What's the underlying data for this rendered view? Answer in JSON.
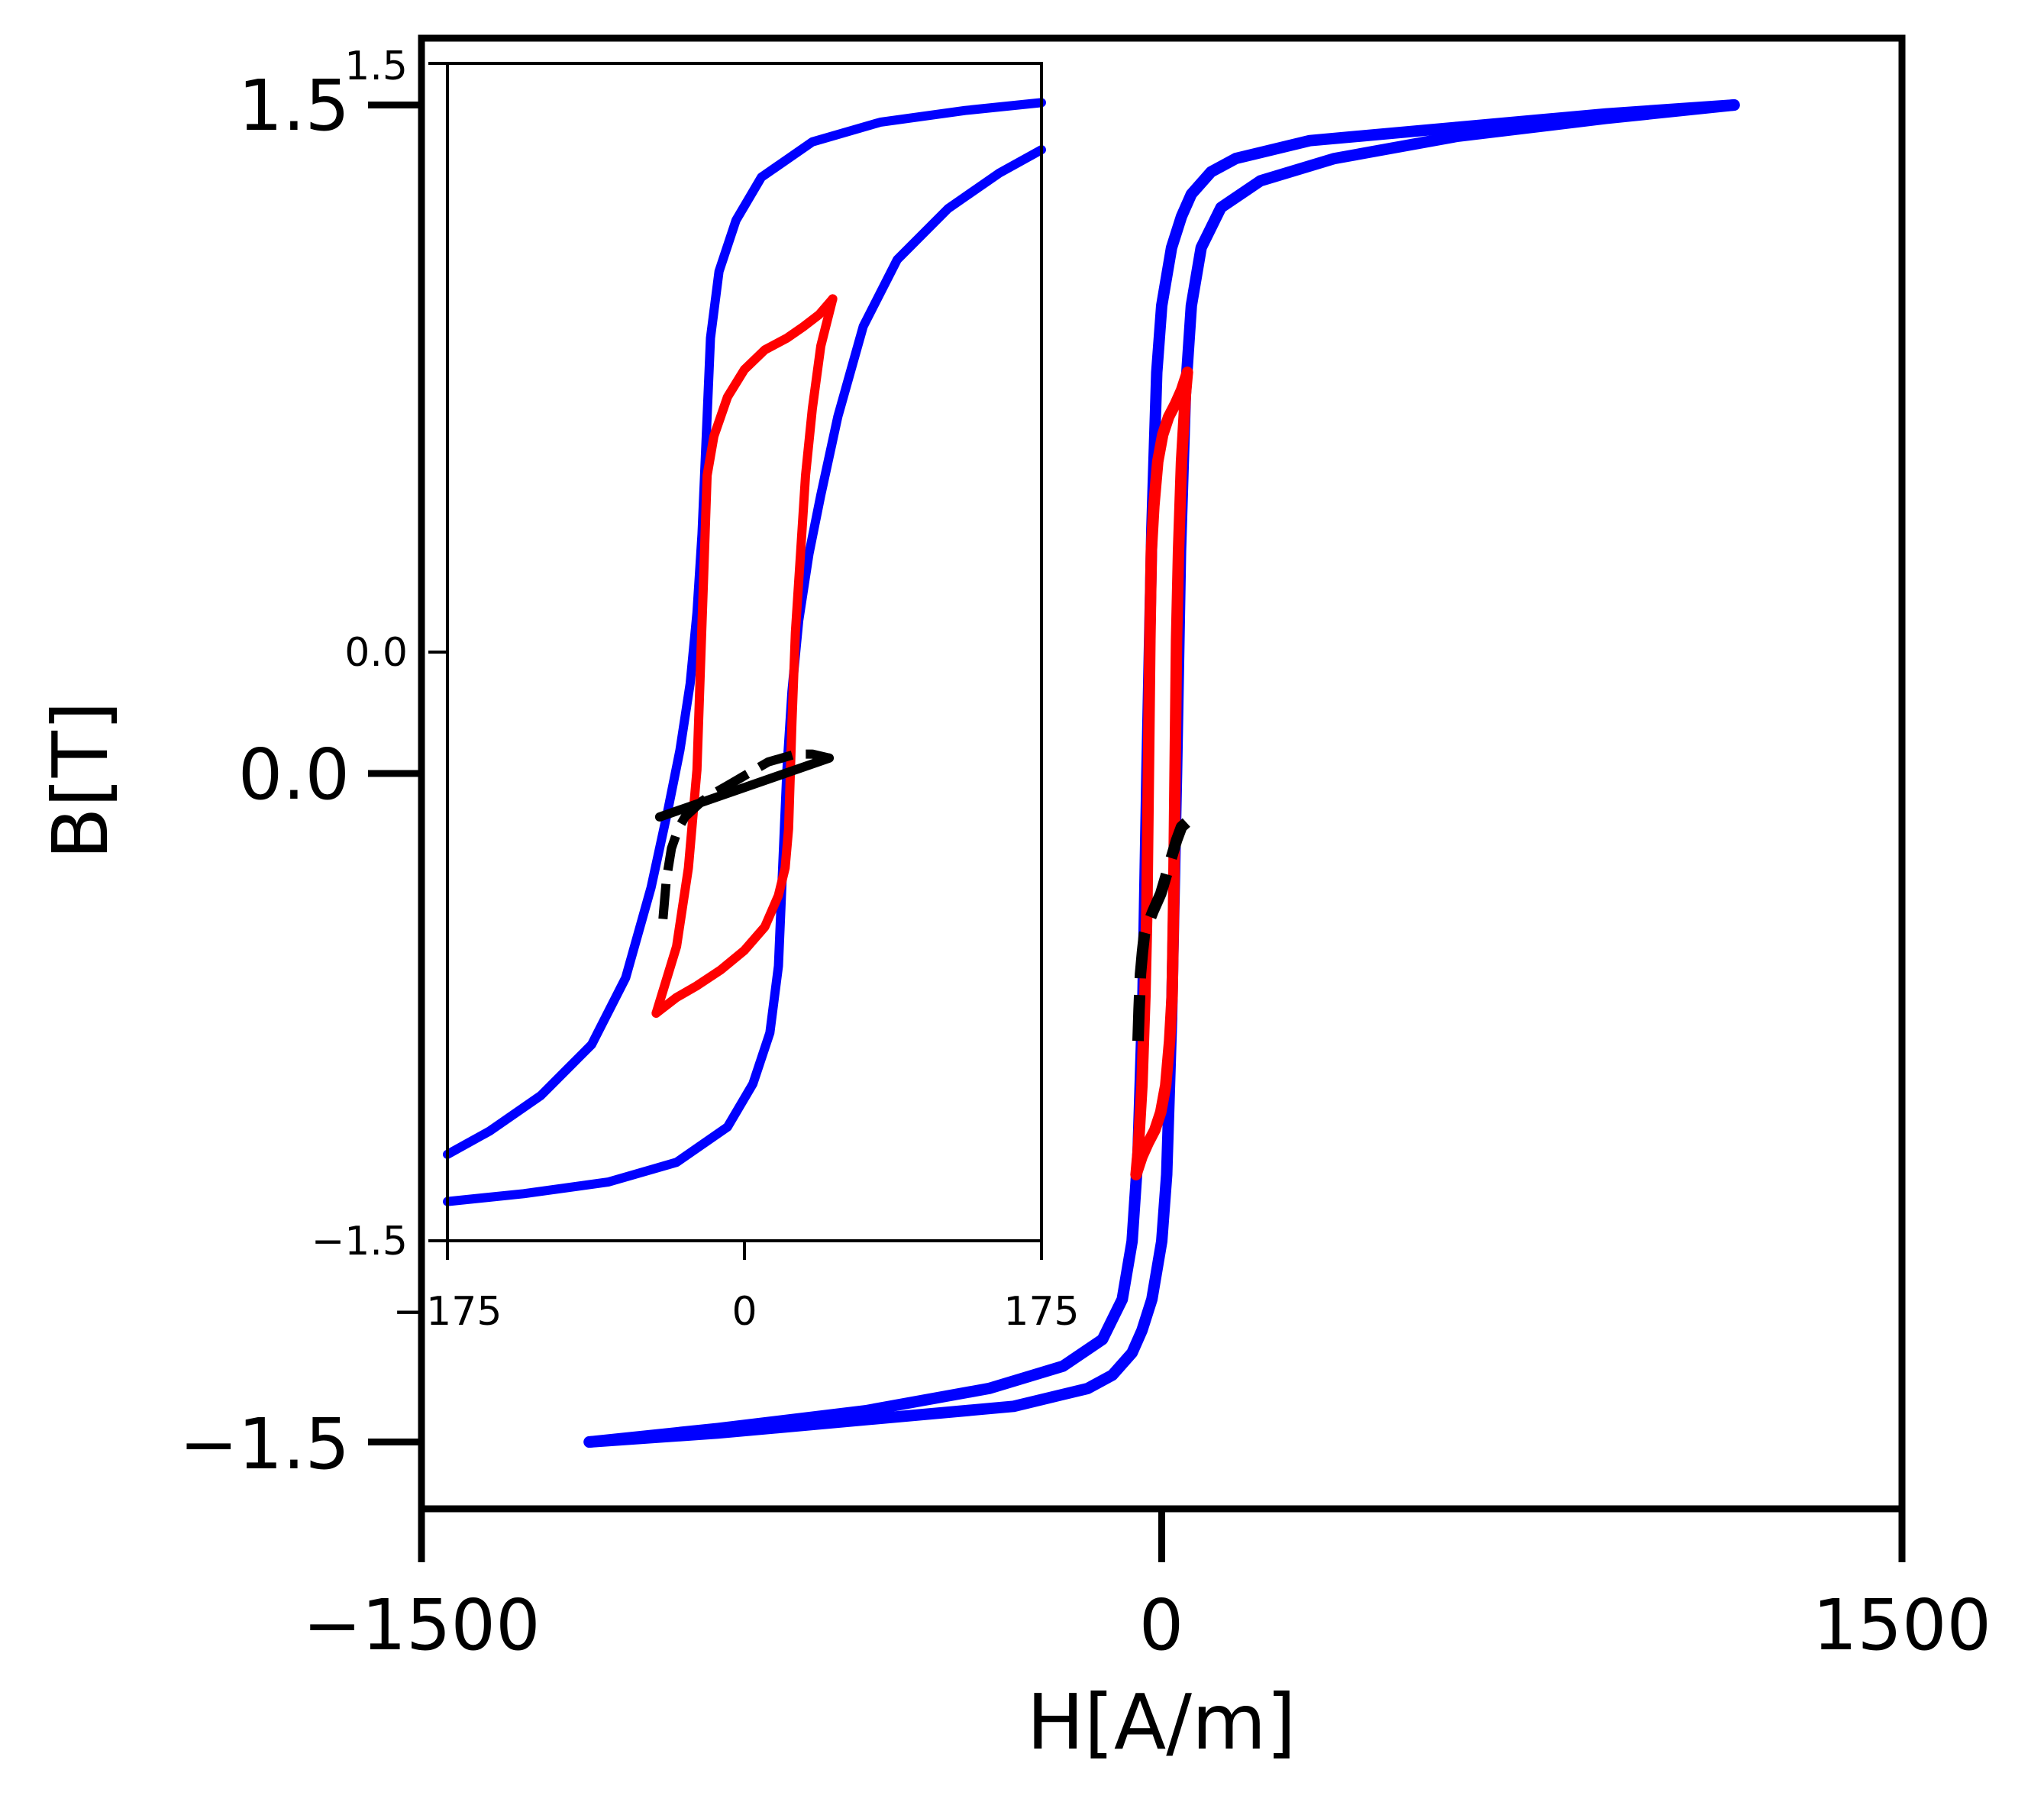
{
  "chart_data": [
    {
      "type": "line",
      "title": "",
      "xlabel": "H[A/m]",
      "ylabel": "B[T]",
      "xlim": [
        -1500,
        1500
      ],
      "ylim": [
        -1.65,
        1.65
      ],
      "xticks": [
        -1500,
        0,
        1500
      ],
      "xtick_labels": [
        "−1500",
        "0",
        "1500"
      ],
      "yticks": [
        -1.5,
        0.0,
        1.5
      ],
      "ytick_labels": [
        "−1.5",
        "0.0",
        "1.5"
      ],
      "grid": false,
      "legend": "none",
      "series": [
        {
          "color": "#0000ff",
          "style": "solid",
          "x": [
            -1160,
            -900,
            -600,
            -350,
            -200,
            -120,
            -80,
            -60,
            -48,
            -38,
            -30,
            -20,
            -10,
            0,
            20,
            40,
            60,
            100,
            150,
            300,
            600,
            900,
            1160
          ],
          "y": [
            -1.5,
            -1.47,
            -1.43,
            -1.38,
            -1.33,
            -1.27,
            -1.18,
            -1.05,
            -0.85,
            -0.5,
            0.0,
            0.55,
            0.9,
            1.05,
            1.18,
            1.25,
            1.3,
            1.35,
            1.38,
            1.42,
            1.45,
            1.48,
            1.5
          ]
        },
        {
          "color": "#0000ff",
          "style": "solid",
          "x": [
            1160,
            900,
            600,
            350,
            200,
            120,
            80,
            60,
            48,
            38,
            30,
            20,
            10,
            0,
            -20,
            -40,
            -60,
            -100,
            -150,
            -300,
            -600,
            -900,
            -1160
          ],
          "y": [
            1.5,
            1.47,
            1.43,
            1.38,
            1.33,
            1.27,
            1.18,
            1.05,
            0.85,
            0.5,
            0.0,
            -0.55,
            -0.9,
            -1.05,
            -1.18,
            -1.25,
            -1.3,
            -1.35,
            -1.38,
            -1.42,
            -1.45,
            -1.48,
            -1.5
          ]
        },
        {
          "color": "#ff0000",
          "style": "solid",
          "x": [
            -52,
            -48,
            -40,
            -34,
            -30,
            -28,
            -26,
            -24,
            -21,
            -16,
            -8,
            2,
            14,
            28,
            40,
            52
          ],
          "y": [
            -0.9,
            -0.85,
            -0.7,
            -0.5,
            -0.3,
            -0.1,
            0.1,
            0.3,
            0.5,
            0.6,
            0.7,
            0.76,
            0.8,
            0.83,
            0.86,
            0.9
          ]
        },
        {
          "color": "#ff0000",
          "style": "solid",
          "x": [
            52,
            48,
            40,
            34,
            30,
            28,
            26,
            24,
            21,
            16,
            8,
            -2,
            -14,
            -28,
            -40,
            -52
          ],
          "y": [
            0.9,
            0.85,
            0.7,
            0.5,
            0.3,
            0.1,
            -0.1,
            -0.3,
            -0.5,
            -0.6,
            -0.7,
            -0.76,
            -0.8,
            -0.83,
            -0.86,
            -0.9
          ]
        },
        {
          "color": "#000000",
          "style": "dashed",
          "x": [
            -48,
            -46,
            -43,
            -39,
            -35,
            -30,
            -25,
            -18,
            -10,
            -2,
            6,
            14,
            22,
            30,
            40,
            50
          ],
          "y": [
            -0.6,
            -0.53,
            -0.45,
            -0.4,
            -0.36,
            -0.34,
            -0.33,
            -0.31,
            -0.29,
            -0.27,
            -0.24,
            -0.21,
            -0.18,
            -0.15,
            -0.12,
            -0.11
          ]
        }
      ]
    },
    {
      "type": "line",
      "title": "",
      "xlabel": "",
      "ylabel": "",
      "xlim": [
        -175,
        175
      ],
      "ylim": [
        -1.5,
        1.5
      ],
      "xticks": [
        -175,
        0,
        175
      ],
      "xtick_labels": [
        "−175",
        "0",
        "175"
      ],
      "yticks": [
        -1.5,
        0.0,
        1.5
      ],
      "ytick_labels": [
        "−1.5",
        "0.0",
        "1.5"
      ],
      "grid": false,
      "legend": "none",
      "series": [
        {
          "color": "#0000ff",
          "style": "solid",
          "x": [
            -175,
            -150,
            -120,
            -90,
            -70,
            -55,
            -45,
            -38,
            -32,
            -28,
            -25,
            -22,
            -20,
            -15,
            -5,
            10,
            40,
            80,
            130,
            175
          ],
          "y": [
            -1.28,
            -1.22,
            -1.13,
            -1.0,
            -0.83,
            -0.6,
            -0.4,
            -0.25,
            -0.08,
            0.1,
            0.3,
            0.6,
            0.8,
            0.97,
            1.1,
            1.21,
            1.3,
            1.35,
            1.38,
            1.4
          ]
        },
        {
          "color": "#0000ff",
          "style": "solid",
          "x": [
            175,
            150,
            120,
            90,
            70,
            55,
            45,
            38,
            32,
            28,
            25,
            22,
            20,
            15,
            5,
            -10,
            -40,
            -80,
            -130,
            -175
          ],
          "y": [
            1.28,
            1.22,
            1.13,
            1.0,
            0.83,
            0.6,
            0.4,
            0.25,
            0.08,
            -0.1,
            -0.3,
            -0.6,
            -0.8,
            -0.97,
            -1.1,
            -1.21,
            -1.3,
            -1.35,
            -1.38,
            -1.4
          ]
        },
        {
          "color": "#ff0000",
          "style": "solid",
          "x": [
            -52,
            -40,
            -33,
            -28,
            -26,
            -24,
            -22,
            -18,
            -10,
            0,
            12,
            25,
            35,
            44,
            52
          ],
          "y": [
            -0.92,
            -0.75,
            -0.55,
            -0.3,
            -0.05,
            0.2,
            0.45,
            0.55,
            0.65,
            0.72,
            0.77,
            0.8,
            0.83,
            0.86,
            0.9
          ]
        },
        {
          "color": "#ff0000",
          "style": "solid",
          "x": [
            52,
            45,
            40,
            36,
            33,
            30,
            28,
            26,
            24,
            20,
            12,
            0,
            -14,
            -28,
            -40,
            -52
          ],
          "y": [
            0.9,
            0.78,
            0.62,
            0.45,
            0.25,
            0.05,
            -0.18,
            -0.45,
            -0.55,
            -0.62,
            -0.7,
            -0.76,
            -0.81,
            -0.85,
            -0.88,
            -0.92
          ]
        },
        {
          "color": "#000000",
          "style": "dashed",
          "x": [
            -48,
            -46,
            -43,
            -39,
            -35,
            -30,
            -25,
            -18,
            -10,
            -2,
            6,
            14,
            22,
            30,
            40,
            50
          ],
          "y": [
            -0.68,
            -0.58,
            -0.5,
            -0.45,
            -0.42,
            -0.4,
            -0.38,
            -0.36,
            -0.34,
            -0.32,
            -0.3,
            -0.28,
            -0.27,
            -0.26,
            -0.26,
            -0.27
          ]
        },
        {
          "color": "#000000",
          "style": "solid",
          "x": [
            -50,
            50
          ],
          "y": [
            -0.42,
            -0.27
          ]
        }
      ]
    }
  ]
}
